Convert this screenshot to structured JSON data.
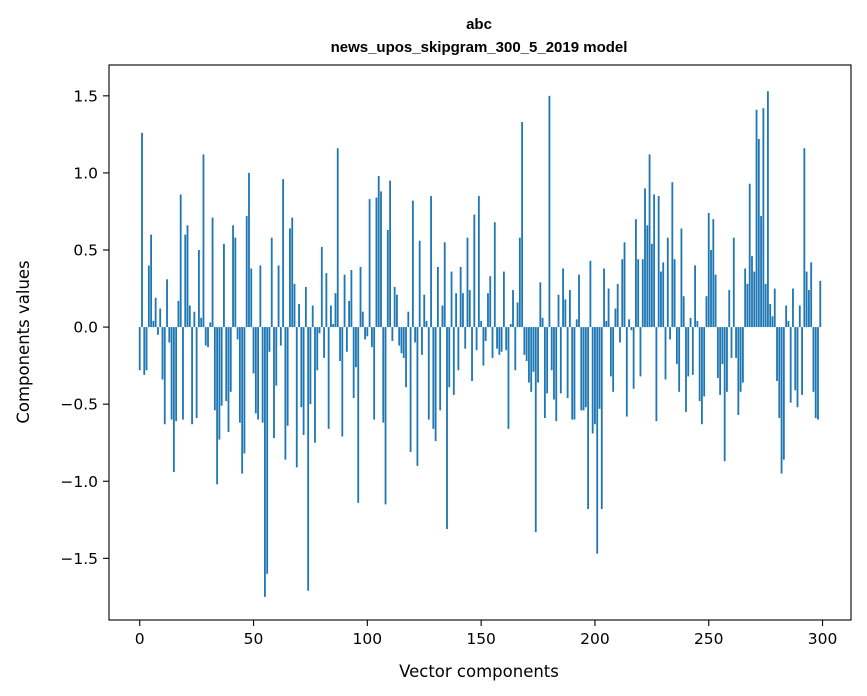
{
  "chart_data": {
    "type": "bar",
    "title_lines": [
      "abc",
      "news_upos_skipgram_300_5_2019 model"
    ],
    "xlabel": "Vector components",
    "ylabel": "Components values",
    "xlim": [
      -13.5,
      312.5
    ],
    "ylim": [
      -1.9,
      1.7
    ],
    "x_ticks": [
      0,
      50,
      100,
      150,
      200,
      250,
      300
    ],
    "y_ticks": [
      -1.5,
      -1.0,
      -0.5,
      0.0,
      0.5,
      1.0,
      1.5
    ],
    "x_tick_labels": [
      "0",
      "50",
      "100",
      "150",
      "200",
      "250",
      "300"
    ],
    "y_tick_labels": [
      "−1.5",
      "−1.0",
      "−0.5",
      "0.0",
      "0.5",
      "1.0",
      "1.5"
    ],
    "grid": false,
    "bar_color": "#1f77b4",
    "x_start": 0,
    "values": [
      -0.28,
      1.26,
      -0.31,
      -0.28,
      0.4,
      0.6,
      0.04,
      0.19,
      -0.05,
      0.12,
      -0.34,
      -0.63,
      0.31,
      -0.1,
      -0.6,
      -0.94,
      -0.61,
      0.17,
      0.86,
      -0.6,
      0.6,
      0.66,
      0.14,
      -0.63,
      0.1,
      -0.59,
      0.5,
      0.06,
      1.12,
      -0.12,
      -0.13,
      0.03,
      0.71,
      -0.54,
      -1.02,
      -0.73,
      -0.51,
      0.54,
      -0.48,
      -0.68,
      -0.42,
      0.66,
      0.58,
      -0.08,
      -0.62,
      -0.95,
      -0.82,
      0.72,
      1.0,
      0.38,
      -0.3,
      -0.56,
      -0.6,
      0.4,
      -0.62,
      -1.75,
      -1.6,
      -0.16,
      0.58,
      -0.72,
      -0.38,
      0.4,
      -0.12,
      0.96,
      -0.86,
      -0.64,
      0.64,
      0.71,
      0.28,
      -0.91,
      0.15,
      -0.52,
      -0.7,
      0.26,
      -1.71,
      -0.5,
      0.14,
      -0.75,
      -0.28,
      -0.04,
      0.52,
      -0.2,
      0.35,
      -0.66,
      0.14,
      0.02,
      0.22,
      1.16,
      -0.22,
      -0.71,
      0.34,
      -0.16,
      0.17,
      0.37,
      -0.46,
      -0.26,
      -1.14,
      0.39,
      0.1,
      -0.08,
      -0.06,
      0.83,
      -0.13,
      -0.6,
      0.84,
      0.98,
      0.88,
      -0.62,
      -1.15,
      0.63,
      0.95,
      -0.09,
      0.26,
      0.21,
      -0.12,
      -0.17,
      -0.2,
      -0.39,
      0.1,
      -0.81,
      0.82,
      -0.1,
      -0.9,
      0.56,
      -0.18,
      0.21,
      0.04,
      -0.6,
      0.85,
      -0.66,
      -0.74,
      0.39,
      -0.54,
      0.14,
      0.55,
      -1.31,
      -0.39,
      0.36,
      -0.44,
      0.22,
      -0.28,
      0.39,
      0.22,
      -0.14,
      0.58,
      0.24,
      -0.35,
      0.73,
      -0.15,
      0.85,
      0.04,
      -0.25,
      -0.09,
      0.22,
      0.33,
      -0.2,
      0.68,
      -0.14,
      -0.18,
      -0.16,
      0.36,
      -0.15,
      -0.66,
      0.02,
      0.24,
      -0.28,
      0.16,
      0.58,
      1.33,
      -0.18,
      -0.22,
      -0.36,
      -0.42,
      -0.29,
      -1.33,
      -0.36,
      0.29,
      0.06,
      -0.59,
      -0.43,
      1.5,
      -0.28,
      -0.47,
      -0.61,
      0.21,
      -0.43,
      0.38,
      0.18,
      -0.46,
      0.24,
      -0.6,
      -0.6,
      0.05,
      0.34,
      -0.54,
      -0.54,
      -0.52,
      -1.18,
      0.43,
      -0.69,
      -0.63,
      -1.47,
      -0.53,
      -1.18,
      0.38,
      0.04,
      0.25,
      -0.32,
      -0.42,
      0.12,
      0.28,
      -0.1,
      0.44,
      0.55,
      -0.58,
      0.05,
      -0.02,
      -0.4,
      0.7,
      0.44,
      -0.32,
      0.44,
      0.9,
      0.66,
      1.12,
      0.54,
      0.86,
      -0.61,
      0.85,
      0.36,
      0.42,
      -0.34,
      0.58,
      -0.08,
      0.94,
      0.44,
      -0.24,
      -0.42,
      0.64,
      0.2,
      -0.55,
      -0.32,
      0.06,
      -0.31,
      0.4,
      0.04,
      -0.48,
      -0.63,
      -0.45,
      0.2,
      0.74,
      0.5,
      0.7,
      0.34,
      -0.33,
      -0.44,
      -0.24,
      -0.87,
      -0.42,
      0.24,
      -0.2,
      0.58,
      -0.2,
      -0.57,
      -0.42,
      -0.36,
      0.38,
      0.28,
      0.93,
      0.46,
      0.36,
      1.41,
      1.22,
      0.72,
      1.42,
      0.28,
      1.53,
      0.15,
      0.07,
      0.25,
      -0.35,
      -0.59,
      -0.95,
      -0.86,
      0.14,
      0.04,
      -0.49,
      0.25,
      -0.41,
      -0.52,
      0.14,
      -0.44,
      1.16,
      0.36,
      0.24,
      0.42,
      -0.42,
      -0.59,
      -0.6,
      0.3
    ]
  }
}
